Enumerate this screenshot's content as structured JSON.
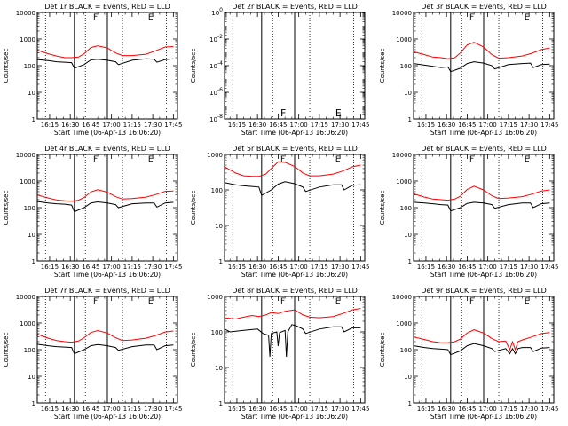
{
  "colors": {
    "events": "#000000",
    "lld": "#ff0000",
    "axis": "#000000",
    "background": "#ffffff"
  },
  "chart_data": [
    {
      "type": "line",
      "title": "Det 1r BLACK = Events, RED = LLD",
      "xlabel": "Start Time (06-Apr-13 16:06:20)",
      "ylabel": "Counts/sec",
      "x_tick_labels": [
        "16:15",
        "16:30",
        "16:45",
        "17:00",
        "17:15",
        "17:30",
        "17:45"
      ],
      "x_range": [
        "16:06",
        "17:48"
      ],
      "y_scale": "log",
      "y_tick_labels": [
        "1",
        "10",
        "100",
        "1000",
        "10000"
      ],
      "markers": [
        "F",
        "E"
      ],
      "series": [
        {
          "name": "BLACK = Events",
          "color": "#000000",
          "x": [
            "16:06",
            "16:14",
            "16:20",
            "16:26",
            "16:31",
            "16:33",
            "16:40",
            "16:45",
            "16:50",
            "16:57",
            "17:03",
            "17:05",
            "17:15",
            "17:25",
            "17:31",
            "17:33",
            "17:39",
            "17:45"
          ],
          "y": [
            170,
            155,
            140,
            135,
            130,
            80,
            110,
            165,
            175,
            160,
            140,
            110,
            160,
            180,
            175,
            135,
            170,
            180
          ]
        },
        {
          "name": "RED = LLD",
          "color": "#ff0000",
          "x": [
            "16:06",
            "16:14",
            "16:20",
            "16:26",
            "16:31",
            "16:36",
            "16:40",
            "16:45",
            "16:50",
            "16:57",
            "17:03",
            "17:08",
            "17:15",
            "17:25",
            "17:32",
            "17:39",
            "17:45"
          ],
          "y": [
            380,
            280,
            230,
            200,
            200,
            210,
            280,
            480,
            560,
            460,
            300,
            240,
            240,
            270,
            360,
            500,
            520
          ]
        }
      ]
    },
    {
      "type": "line",
      "title": "Det 2r BLACK = Events, RED = LLD",
      "xlabel": "Start Time (06-Apr-13 16:06:20)",
      "ylabel": "Counts/sec",
      "x_tick_labels": [
        "16:15",
        "16:30",
        "16:45",
        "17:00",
        "17:15",
        "17:30",
        "17:45"
      ],
      "x_range": [
        "16:06",
        "17:48"
      ],
      "y_scale": "log",
      "y_tick_labels": [
        "10^0",
        "10^-2",
        "10^-4",
        "10^-6",
        "10^-8"
      ],
      "markers": [
        "F",
        "E"
      ],
      "series": []
    },
    {
      "type": "line",
      "title": "Det 3r BLACK = Events, RED = LLD",
      "xlabel": "Start Time (06-Apr-13 16:06:20)",
      "ylabel": "Counts/sec",
      "x_tick_labels": [
        "16:15",
        "16:30",
        "16:45",
        "17:00",
        "17:15",
        "17:30",
        "17:45"
      ],
      "x_range": [
        "16:06",
        "17:48"
      ],
      "y_scale": "log",
      "y_tick_labels": [
        "1",
        "10",
        "100",
        "1000",
        "10000"
      ],
      "markers": [
        "F",
        "E"
      ],
      "series": [
        {
          "name": "BLACK = Events",
          "color": "#000000",
          "x": [
            "16:06",
            "16:14",
            "16:20",
            "16:26",
            "16:31",
            "16:33",
            "16:40",
            "16:45",
            "16:50",
            "16:57",
            "17:03",
            "17:05",
            "17:15",
            "17:25",
            "17:31",
            "17:33",
            "17:39",
            "17:45"
          ],
          "y": [
            120,
            105,
            95,
            85,
            90,
            60,
            80,
            120,
            140,
            125,
            100,
            75,
            110,
            120,
            125,
            85,
            110,
            115
          ]
        },
        {
          "name": "RED = LLD",
          "color": "#ff0000",
          "x": [
            "16:06",
            "16:14",
            "16:20",
            "16:26",
            "16:31",
            "16:36",
            "16:40",
            "16:45",
            "16:50",
            "16:57",
            "17:03",
            "17:08",
            "17:15",
            "17:25",
            "17:32",
            "17:39",
            "17:45"
          ],
          "y": [
            330,
            260,
            210,
            200,
            180,
            200,
            300,
            600,
            750,
            500,
            260,
            190,
            200,
            230,
            290,
            400,
            460
          ]
        }
      ]
    },
    {
      "type": "line",
      "title": "Det 4r BLACK = Events, RED = LLD",
      "xlabel": "Start Time (06-Apr-13 16:06:20)",
      "ylabel": "Counts/sec",
      "x_tick_labels": [
        "16:15",
        "16:30",
        "16:45",
        "17:00",
        "17:15",
        "17:30",
        "17:45"
      ],
      "x_range": [
        "16:06",
        "17:48"
      ],
      "y_scale": "log",
      "y_tick_labels": [
        "1",
        "10",
        "100",
        "1000",
        "10000"
      ],
      "markers": [
        "F",
        "E"
      ],
      "series": [
        {
          "name": "BLACK = Events",
          "color": "#000000",
          "x": [
            "16:06",
            "16:14",
            "16:20",
            "16:26",
            "16:31",
            "16:33",
            "16:40",
            "16:45",
            "16:50",
            "16:57",
            "17:03",
            "17:05",
            "17:15",
            "17:25",
            "17:31",
            "17:33",
            "17:39",
            "17:45"
          ],
          "y": [
            170,
            150,
            140,
            135,
            125,
            70,
            100,
            150,
            165,
            150,
            130,
            100,
            140,
            150,
            150,
            105,
            150,
            160
          ]
        },
        {
          "name": "RED = LLD",
          "color": "#ff0000",
          "x": [
            "16:06",
            "16:14",
            "16:20",
            "16:26",
            "16:31",
            "16:36",
            "16:40",
            "16:45",
            "16:50",
            "16:57",
            "17:03",
            "17:08",
            "17:15",
            "17:25",
            "17:32",
            "17:39",
            "17:45"
          ],
          "y": [
            300,
            230,
            195,
            180,
            175,
            190,
            240,
            390,
            470,
            380,
            260,
            210,
            220,
            250,
            310,
            410,
            420
          ]
        }
      ]
    },
    {
      "type": "line",
      "title": "Det 5r BLACK = Events, RED = LLD",
      "xlabel": "Start Time (06-Apr-13 16:06:20)",
      "ylabel": "Counts/sec",
      "x_tick_labels": [
        "16:15",
        "16:30",
        "16:45",
        "17:00",
        "17:15",
        "17:30",
        "17:45"
      ],
      "x_range": [
        "16:06",
        "17:48"
      ],
      "y_scale": "log",
      "y_tick_labels": [
        "1",
        "10",
        "100",
        "1000"
      ],
      "markers": [
        "F",
        "E"
      ],
      "series": [
        {
          "name": "BLACK = Events",
          "color": "#000000",
          "x": [
            "16:06",
            "16:14",
            "16:20",
            "16:26",
            "16:31",
            "16:33",
            "16:40",
            "16:45",
            "16:50",
            "16:57",
            "17:03",
            "17:05",
            "17:15",
            "17:25",
            "17:31",
            "17:33",
            "17:39",
            "17:45"
          ],
          "y": [
            160,
            140,
            130,
            125,
            120,
            70,
            100,
            145,
            170,
            150,
            120,
            90,
            120,
            140,
            140,
            100,
            135,
            140
          ]
        },
        {
          "name": "RED = LLD",
          "color": "#ff0000",
          "x": [
            "16:06",
            "16:14",
            "16:20",
            "16:26",
            "16:31",
            "16:36",
            "16:40",
            "16:45",
            "16:50",
            "16:57",
            "17:03",
            "17:08",
            "17:15",
            "17:25",
            "17:32",
            "17:39",
            "17:45"
          ],
          "y": [
            450,
            300,
            250,
            240,
            240,
            280,
            400,
            620,
            600,
            460,
            300,
            250,
            250,
            280,
            340,
            450,
            500
          ]
        }
      ]
    },
    {
      "type": "line",
      "title": "Det 6r BLACK = Events, RED = LLD",
      "xlabel": "Start Time (06-Apr-13 16:06:20)",
      "ylabel": "Counts/sec",
      "x_tick_labels": [
        "16:15",
        "16:30",
        "16:45",
        "17:00",
        "17:15",
        "17:30",
        "17:45"
      ],
      "x_range": [
        "16:06",
        "17:48"
      ],
      "y_scale": "log",
      "y_tick_labels": [
        "1",
        "10",
        "100",
        "1000",
        "10000"
      ],
      "markers": [
        "F",
        "E"
      ],
      "series": [
        {
          "name": "BLACK = Events",
          "color": "#000000",
          "x": [
            "16:06",
            "16:14",
            "16:20",
            "16:26",
            "16:31",
            "16:33",
            "16:40",
            "16:45",
            "16:50",
            "16:57",
            "17:03",
            "17:05",
            "17:15",
            "17:25",
            "17:31",
            "17:33",
            "17:39",
            "17:45"
          ],
          "y": [
            160,
            150,
            140,
            130,
            125,
            75,
            100,
            145,
            160,
            150,
            130,
            95,
            130,
            150,
            150,
            100,
            140,
            150
          ]
        },
        {
          "name": "RED = LLD",
          "color": "#ff0000",
          "x": [
            "16:06",
            "16:14",
            "16:20",
            "16:26",
            "16:31",
            "16:36",
            "16:40",
            "16:45",
            "16:50",
            "16:57",
            "17:03",
            "17:08",
            "17:15",
            "17:25",
            "17:32",
            "17:39",
            "17:45"
          ],
          "y": [
            330,
            250,
            210,
            200,
            190,
            210,
            270,
            480,
            640,
            460,
            280,
            220,
            230,
            260,
            320,
            420,
            460
          ]
        }
      ]
    },
    {
      "type": "line",
      "title": "Det 7r BLACK = Events, RED = LLD",
      "xlabel": "Start Time (06-Apr-13 16:06:20)",
      "ylabel": "Counts/sec",
      "x_tick_labels": [
        "16:15",
        "16:30",
        "16:45",
        "17:00",
        "17:15",
        "17:30",
        "17:45"
      ],
      "x_range": [
        "16:06",
        "17:48"
      ],
      "y_scale": "log",
      "y_tick_labels": [
        "1",
        "10",
        "100",
        "1000",
        "10000"
      ],
      "markers": [
        "F",
        "E"
      ],
      "series": [
        {
          "name": "BLACK = Events",
          "color": "#000000",
          "x": [
            "16:06",
            "16:14",
            "16:20",
            "16:26",
            "16:31",
            "16:33",
            "16:40",
            "16:45",
            "16:50",
            "16:57",
            "17:03",
            "17:05",
            "17:15",
            "17:25",
            "17:31",
            "17:33",
            "17:39",
            "17:45"
          ],
          "y": [
            160,
            140,
            130,
            125,
            120,
            70,
            100,
            140,
            155,
            140,
            120,
            95,
            130,
            150,
            150,
            100,
            140,
            150
          ]
        },
        {
          "name": "RED = LLD",
          "color": "#ff0000",
          "x": [
            "16:06",
            "16:14",
            "16:20",
            "16:26",
            "16:31",
            "16:36",
            "16:40",
            "16:45",
            "16:50",
            "16:57",
            "17:03",
            "17:08",
            "17:15",
            "17:25",
            "17:32",
            "17:39",
            "17:45"
          ],
          "y": [
            380,
            270,
            220,
            200,
            190,
            210,
            280,
            440,
            520,
            420,
            280,
            220,
            230,
            270,
            340,
            460,
            500
          ]
        }
      ]
    },
    {
      "type": "line",
      "title": "Det 8r BLACK = Events, RED = LLD",
      "xlabel": "Start Time (06-Apr-13 16:06:20)",
      "ylabel": "Counts/sec",
      "x_tick_labels": [
        "16:15",
        "16:30",
        "16:45",
        "17:00",
        "17:15",
        "17:30",
        "17:45"
      ],
      "x_range": [
        "16:06",
        "17:48"
      ],
      "y_scale": "log",
      "y_tick_labels": [
        "1",
        "10",
        "100",
        "1000"
      ],
      "markers": [
        "F",
        "E"
      ],
      "series": [
        {
          "name": "BLACK = Events",
          "color": "#000000",
          "x": [
            "16:06",
            "16:10",
            "16:20",
            "16:30",
            "16:34",
            "16:38",
            "16:39",
            "16:40",
            "16:44",
            "16:45",
            "16:46",
            "16:50",
            "16:51",
            "16:52",
            "16:55",
            "16:58",
            "17:03",
            "17:05",
            "17:15",
            "17:25",
            "17:31",
            "17:33",
            "17:39",
            "17:45"
          ],
          "y": [
            120,
            100,
            110,
            120,
            90,
            80,
            20,
            90,
            100,
            40,
            95,
            110,
            20,
            100,
            160,
            150,
            120,
            90,
            120,
            140,
            140,
            100,
            130,
            130
          ]
        },
        {
          "name": "RED = LLD",
          "color": "#ff0000",
          "x": [
            "16:06",
            "16:14",
            "16:20",
            "16:26",
            "16:31",
            "16:36",
            "16:40",
            "16:45",
            "16:50",
            "16:57",
            "17:03",
            "17:08",
            "17:15",
            "17:25",
            "17:32",
            "17:39",
            "17:45"
          ],
          "y": [
            250,
            230,
            260,
            290,
            270,
            300,
            350,
            330,
            380,
            420,
            300,
            260,
            250,
            270,
            330,
            420,
            460
          ]
        }
      ]
    },
    {
      "type": "line",
      "title": "Det 9r BLACK = Events, RED = LLD",
      "xlabel": "Start Time (06-Apr-13 16:06:20)",
      "ylabel": "Counts/sec",
      "x_tick_labels": [
        "16:15",
        "16:30",
        "16:45",
        "17:00",
        "17:15",
        "17:30",
        "17:45"
      ],
      "x_range": [
        "16:06",
        "17:48"
      ],
      "y_scale": "log",
      "y_tick_labels": [
        "1",
        "10",
        "100",
        "1000",
        "10000"
      ],
      "markers": [
        "F",
        "E"
      ],
      "series": [
        {
          "name": "BLACK = Events",
          "color": "#000000",
          "x": [
            "16:06",
            "16:14",
            "16:20",
            "16:26",
            "16:31",
            "16:33",
            "16:40",
            "16:45",
            "16:50",
            "16:57",
            "17:03",
            "17:05",
            "17:13",
            "17:16",
            "17:18",
            "17:20",
            "17:22",
            "17:25",
            "17:31",
            "17:33",
            "17:39",
            "17:45"
          ],
          "y": [
            140,
            120,
            110,
            105,
            100,
            65,
            90,
            140,
            170,
            140,
            110,
            85,
            110,
            70,
            110,
            70,
            110,
            120,
            120,
            85,
            115,
            120
          ]
        },
        {
          "name": "RED = LLD",
          "color": "#ff0000",
          "x": [
            "16:06",
            "16:14",
            "16:20",
            "16:26",
            "16:31",
            "16:36",
            "16:40",
            "16:45",
            "16:50",
            "16:57",
            "17:03",
            "17:08",
            "17:13",
            "17:16",
            "17:18",
            "17:20",
            "17:22",
            "17:25",
            "17:32",
            "17:39",
            "17:45"
          ],
          "y": [
            300,
            240,
            200,
            180,
            180,
            200,
            250,
            420,
            560,
            420,
            260,
            200,
            210,
            100,
            200,
            100,
            200,
            230,
            300,
            400,
            440
          ]
        }
      ]
    }
  ]
}
